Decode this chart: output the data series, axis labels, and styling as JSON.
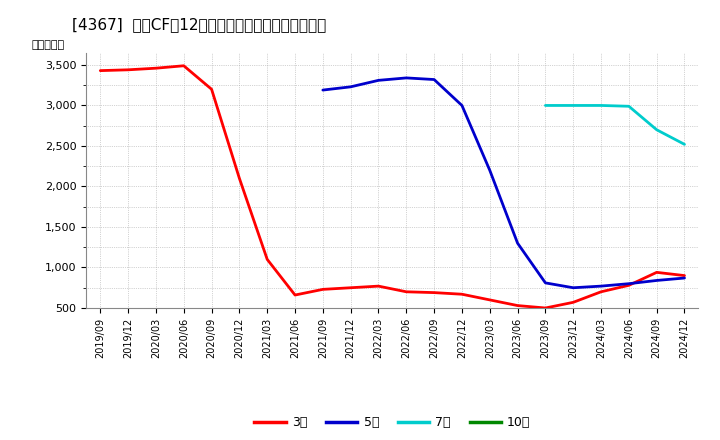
{
  "title": "[4367]  投賄CFだ12か月移動合計の標準偏差の推移",
  "ylabel": "（百万円）",
  "ylim": [
    500,
    3650
  ],
  "yticks": [
    500,
    1000,
    1500,
    2000,
    2500,
    3000,
    3500
  ],
  "ytick_labels": [
    "500",
    "1,000",
    "1,500",
    "2,000",
    "2,500",
    "3,000",
    "3,500"
  ],
  "background_color": "#ffffff",
  "grid_color": "#aaaaaa",
  "series": {
    "3year": {
      "color": "#ff0000",
      "label": "3年",
      "points": [
        [
          "2019/09",
          3430
        ],
        [
          "2019/12",
          3440
        ],
        [
          "2020/03",
          3460
        ],
        [
          "2020/06",
          3490
        ],
        [
          "2020/09",
          3200
        ],
        [
          "2020/12",
          2100
        ],
        [
          "2021/03",
          1100
        ],
        [
          "2021/06",
          660
        ],
        [
          "2021/09",
          730
        ],
        [
          "2021/12",
          750
        ],
        [
          "2022/03",
          770
        ],
        [
          "2022/06",
          700
        ],
        [
          "2022/09",
          690
        ],
        [
          "2022/12",
          670
        ],
        [
          "2023/03",
          600
        ],
        [
          "2023/06",
          530
        ],
        [
          "2023/09",
          500
        ],
        [
          "2023/12",
          570
        ],
        [
          "2024/03",
          700
        ],
        [
          "2024/06",
          780
        ],
        [
          "2024/09",
          940
        ],
        [
          "2024/12",
          900
        ]
      ]
    },
    "5year": {
      "color": "#0000cc",
      "label": "5年",
      "points": [
        [
          "2021/09",
          3190
        ],
        [
          "2021/12",
          3230
        ],
        [
          "2022/03",
          3310
        ],
        [
          "2022/06",
          3340
        ],
        [
          "2022/09",
          3320
        ],
        [
          "2022/12",
          3000
        ],
        [
          "2023/03",
          2200
        ],
        [
          "2023/06",
          1300
        ],
        [
          "2023/09",
          810
        ],
        [
          "2023/12",
          750
        ],
        [
          "2024/03",
          770
        ],
        [
          "2024/06",
          800
        ],
        [
          "2024/09",
          840
        ],
        [
          "2024/12",
          870
        ]
      ]
    },
    "7year": {
      "color": "#00cccc",
      "label": "7年",
      "points": [
        [
          "2023/09",
          3000
        ],
        [
          "2023/12",
          3000
        ],
        [
          "2024/03",
          3000
        ],
        [
          "2024/06",
          2990
        ],
        [
          "2024/09",
          2700
        ],
        [
          "2024/12",
          2520
        ]
      ]
    },
    "10year": {
      "color": "#008800",
      "label": "10年",
      "points": []
    }
  },
  "xtick_labels": [
    "2019/09",
    "2019/12",
    "2020/03",
    "2020/06",
    "2020/09",
    "2020/12",
    "2021/03",
    "2021/06",
    "2021/09",
    "2021/12",
    "2022/03",
    "2022/06",
    "2022/09",
    "2022/12",
    "2023/03",
    "2023/06",
    "2023/09",
    "2023/12",
    "2024/03",
    "2024/06",
    "2024/09",
    "2024/12"
  ]
}
